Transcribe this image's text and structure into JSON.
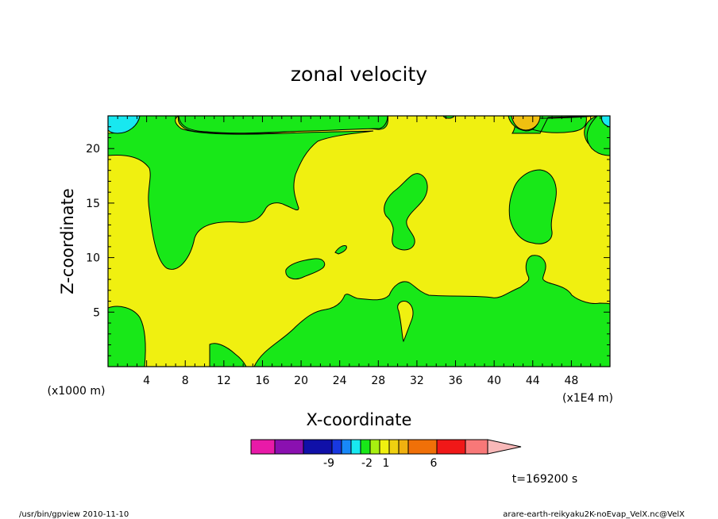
{
  "chart_data": {
    "type": "heatmap",
    "title": "zonal velocity",
    "xlabel": "X-coordinate",
    "ylabel": "Z-coordinate",
    "x_unit_note": "(x1E4 m)",
    "y_unit_note": "(x1000 m)",
    "xlim": [
      0,
      52
    ],
    "ylim": [
      0,
      23
    ],
    "x_ticks": [
      4,
      8,
      12,
      16,
      20,
      24,
      28,
      32,
      36,
      40,
      44,
      48
    ],
    "y_ticks": [
      5,
      10,
      15,
      20
    ],
    "colorbar": {
      "colors": [
        "#e81aa8",
        "#8a10b0",
        "#1010a8",
        "#1838e0",
        "#1888f8",
        "#18e8f0",
        "#18e818",
        "#a8f010",
        "#f0f010",
        "#f0d010",
        "#f0b010",
        "#f07008",
        "#f01818",
        "#f87878",
        "#f8b8b8"
      ],
      "labels": [
        {
          "text": "-9",
          "index": 2
        },
        {
          "text": "-2",
          "index": 6
        },
        {
          "text": "1",
          "index": 8
        },
        {
          "text": "6",
          "index": 11
        }
      ]
    },
    "legend": "bottom",
    "regions": [
      {
        "level": "background",
        "color": "#f0f010"
      },
      {
        "level": "green",
        "color": "#18e818"
      },
      {
        "level": "cyan",
        "color": "#18e8f0"
      },
      {
        "level": "orange",
        "color": "#f0c010"
      }
    ],
    "time_label": "t=169200 s"
  },
  "footer": {
    "left": "/usr/bin/gpview   2010-11-10",
    "right": "arare-earth-reikyaku2K-noEvap_VelX.nc@VelX"
  }
}
